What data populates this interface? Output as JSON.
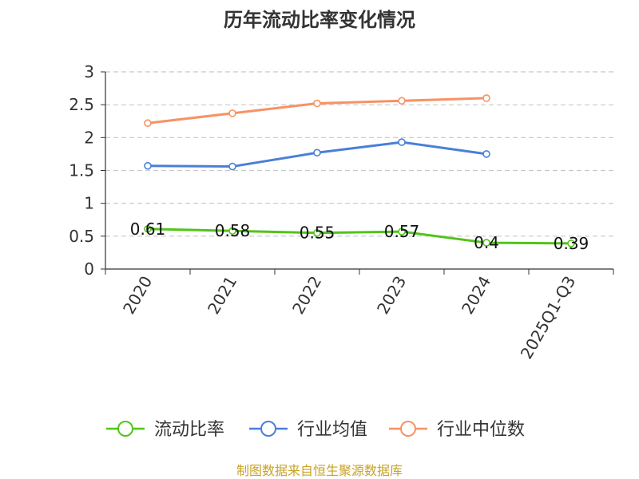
{
  "chart_data": {
    "type": "line",
    "title": "历年流动比率变化情况",
    "categories": [
      "2020",
      "2021",
      "2022",
      "2023",
      "2024",
      "2025Q1-Q3"
    ],
    "ylim": [
      0,
      3
    ],
    "yticks": [
      "0",
      "0.5",
      "1",
      "1.5",
      "2",
      "2.5",
      "3"
    ],
    "grid": true,
    "legend_position": "bottom",
    "series": [
      {
        "name": "流动比率",
        "color": "#52c41a",
        "values": [
          0.61,
          0.58,
          0.55,
          0.57,
          0.4,
          0.39
        ],
        "labels": [
          "0.61",
          "0.58",
          "0.55",
          "0.57",
          "0.4",
          "0.39"
        ]
      },
      {
        "name": "行业均值",
        "color": "#4a7fd8",
        "values": [
          1.57,
          1.56,
          1.77,
          1.93,
          1.75,
          null
        ]
      },
      {
        "name": "行业中位数",
        "color": "#f79263",
        "values": [
          2.22,
          2.37,
          2.52,
          2.56,
          2.6,
          null
        ]
      }
    ]
  },
  "source": "制图数据来自恒生聚源数据库"
}
